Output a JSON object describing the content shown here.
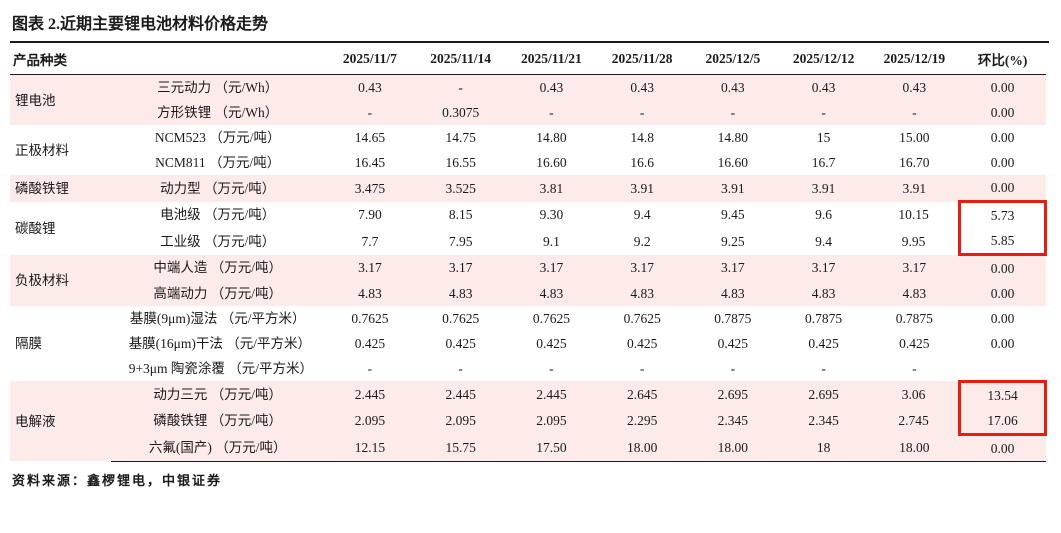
{
  "title": "图表 2.近期主要锂电池材料价格走势",
  "source_note": "资料来源：鑫椤锂电，中银证券",
  "colors": {
    "row_shade_pink": "#fcebe9",
    "highlight_box_red": "#ea1b10",
    "rule_black": "#1a1a1a"
  },
  "table": {
    "header": [
      "产品种类",
      "2025/11/7",
      "2025/11/14",
      "2025/11/21",
      "2025/11/28",
      "2025/12/5",
      "2025/12/12",
      "2025/12/19",
      "环比(%)"
    ],
    "groups": [
      {
        "category": "锂电池",
        "shade": "pink",
        "rows": [
          {
            "label": "三元动力 （元/Wh）",
            "values": [
              "0.43",
              "-",
              "0.43",
              "0.43",
              "0.43",
              "0.43",
              "0.43",
              "0.00"
            ]
          },
          {
            "label": "方形铁锂 （元/Wh）",
            "values": [
              "-",
              "0.3075",
              "-",
              "-",
              "-",
              "-",
              "-",
              "0.00"
            ]
          }
        ]
      },
      {
        "category": "正极材料",
        "shade": "white",
        "rows": [
          {
            "label": "NCM523 （万元/吨）",
            "values": [
              "14.65",
              "14.75",
              "14.80",
              "14.8",
              "14.80",
              "15",
              "15.00",
              "0.00"
            ]
          },
          {
            "label": "NCM811 （万元/吨）",
            "values": [
              "16.45",
              "16.55",
              "16.60",
              "16.6",
              "16.60",
              "16.7",
              "16.70",
              "0.00"
            ]
          }
        ]
      },
      {
        "category": "磷酸铁锂",
        "shade": "pink",
        "rows": [
          {
            "label": "动力型 （万元/吨）",
            "values": [
              "3.475",
              "3.525",
              "3.81",
              "3.91",
              "3.91",
              "3.91",
              "3.91",
              "0.00"
            ]
          }
        ]
      },
      {
        "category": "碳酸锂",
        "shade": "white",
        "rows": [
          {
            "label": "电池级 （万元/吨）",
            "values": [
              "7.90",
              "8.15",
              "9.30",
              "9.4",
              "9.45",
              "9.6",
              "10.15",
              "5.73"
            ],
            "highlight": "top"
          },
          {
            "label": "工业级 （万元/吨）",
            "values": [
              "7.7",
              "7.95",
              "9.1",
              "9.2",
              "9.25",
              "9.4",
              "9.95",
              "5.85"
            ],
            "highlight": "bottom"
          }
        ]
      },
      {
        "category": "负极材料",
        "shade": "pink",
        "rows": [
          {
            "label": "中端人造 （万元/吨）",
            "values": [
              "3.17",
              "3.17",
              "3.17",
              "3.17",
              "3.17",
              "3.17",
              "3.17",
              "0.00"
            ]
          },
          {
            "label": "高端动力 （万元/吨）",
            "values": [
              "4.83",
              "4.83",
              "4.83",
              "4.83",
              "4.83",
              "4.83",
              "4.83",
              "0.00"
            ]
          }
        ]
      },
      {
        "category": "隔膜",
        "shade": "white",
        "rows": [
          {
            "label": "基膜(9μm)湿法 （元/平方米）",
            "values": [
              "0.7625",
              "0.7625",
              "0.7625",
              "0.7625",
              "0.7875",
              "0.7875",
              "0.7875",
              "0.00"
            ],
            "raised": [
              5
            ]
          },
          {
            "label": "基膜(16μm)干法 （元/平方米）",
            "values": [
              "0.425",
              "0.425",
              "0.425",
              "0.425",
              "0.425",
              "0.425",
              "0.425",
              "0.00"
            ],
            "raised": [
              5
            ]
          },
          {
            "label": "9+3μm 陶瓷涂覆 （元/平方米）",
            "values": [
              "-",
              "-",
              "-",
              "-",
              "-",
              "-",
              "-",
              ""
            ]
          }
        ]
      },
      {
        "category": "电解液",
        "shade": "pink",
        "rows": [
          {
            "label": "动力三元 （万元/吨）",
            "values": [
              "2.445",
              "2.445",
              "2.445",
              "2.645",
              "2.695",
              "2.695",
              "3.06",
              "13.54"
            ],
            "highlight": "top"
          },
          {
            "label": "磷酸铁锂 （万元/吨）",
            "values": [
              "2.095",
              "2.095",
              "2.095",
              "2.295",
              "2.345",
              "2.345",
              "2.745",
              "17.06"
            ],
            "highlight": "bottom"
          },
          {
            "label": "六氟(国产) （万元/吨）",
            "values": [
              "12.15",
              "15.75",
              "17.50",
              "18.00",
              "18.00",
              "18",
              "18.00",
              "0.00"
            ]
          }
        ]
      }
    ]
  }
}
